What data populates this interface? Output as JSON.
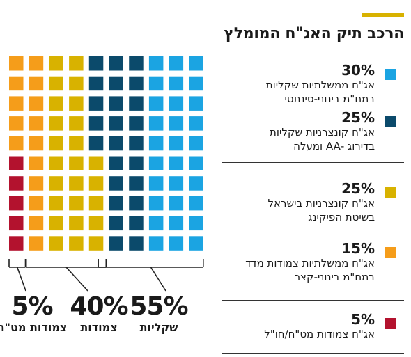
{
  "title": "הרכב תיק האג\"ח המומלץ",
  "colors": {
    "accent": "#d8b200",
    "light_blue": "#1ba4e2",
    "dark_blue": "#0b4a6b",
    "yellow": "#d8b200",
    "orange": "#f59d1a",
    "red": "#b3122e"
  },
  "chart_data": {
    "type": "waffle",
    "title": "הרכב תיק האג\"ח המומלץ",
    "grid": {
      "rows": 10,
      "cols": 10,
      "total_units": 100
    },
    "segments": [
      {
        "pct_label": "30%",
        "value": 30,
        "color": "#1ba4e2",
        "description": [
          "אג\"ח ממשלתיות שקליות",
          "במח\"מ בינוני-סינתטי"
        ]
      },
      {
        "pct_label": "25%",
        "value": 25,
        "color": "#0b4a6b",
        "description": [
          "אג\"ח קונצרניות שקליות",
          "בדירוג -AA ומעלה"
        ]
      },
      {
        "pct_label": "25%",
        "value": 25,
        "color": "#d8b200",
        "description": [
          "אג\"ח קונצרניות בישראל",
          "בשיטת הפיקינג"
        ]
      },
      {
        "pct_label": "15%",
        "value": 15,
        "color": "#f59d1a",
        "description": [
          "אג\"ח ממשלתיות צמודות מדד",
          "במח\"מ בינוני-קצר"
        ]
      },
      {
        "pct_label": "5%",
        "value": 5,
        "color": "#b3122e",
        "description": [
          "אג\"ח צמודות מט\"ח/חו\"ל"
        ]
      }
    ],
    "groups": [
      {
        "pct_label": "55%",
        "value": 55,
        "label": "שקליות"
      },
      {
        "pct_label": "40%",
        "value": 40,
        "label": "צמודות"
      },
      {
        "pct_label": "5%",
        "value": 5,
        "label": "צמודות מט\"ח"
      }
    ]
  }
}
